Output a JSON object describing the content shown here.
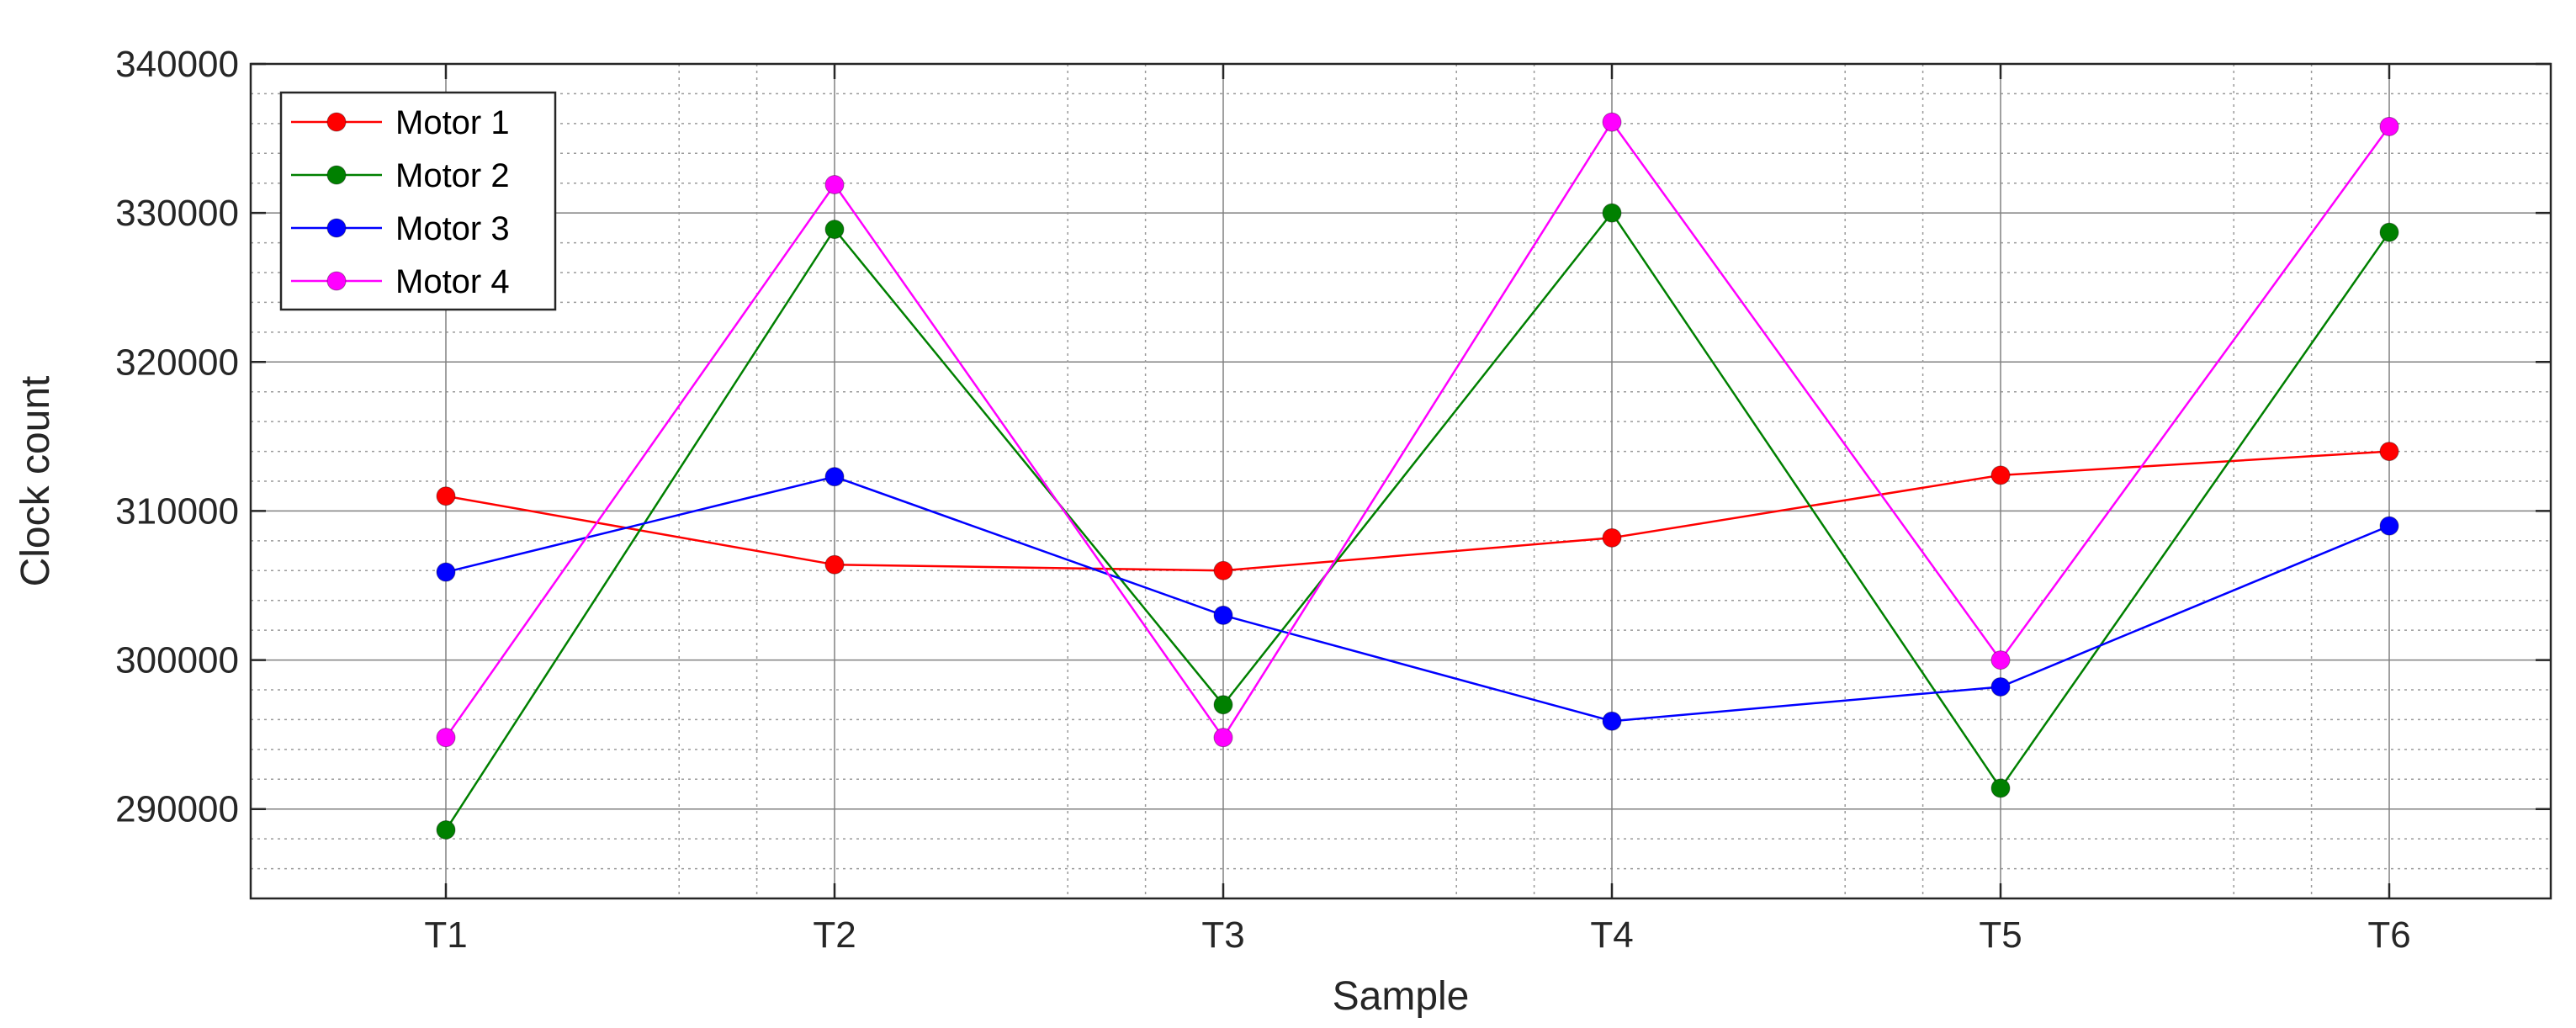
{
  "chart_data": {
    "type": "line",
    "title": "",
    "xlabel": "Sample",
    "ylabel": "Clock count",
    "categories": [
      "T1",
      "T2",
      "T3",
      "T4",
      "T5",
      "T6"
    ],
    "ylim": [
      284000,
      340000
    ],
    "yticks": [
      290000,
      300000,
      310000,
      320000,
      330000,
      340000
    ],
    "ytick_labels": [
      "290000",
      "300000",
      "310000",
      "320000",
      "330000",
      "340000"
    ],
    "grid": "on",
    "legend_position": "top-left",
    "series": [
      {
        "name": "Motor 1",
        "color": "#ff0000",
        "values": [
          311000,
          306400,
          306000,
          308200,
          312400,
          314000
        ]
      },
      {
        "name": "Motor 2",
        "color": "#008000",
        "values": [
          288600,
          328900,
          297000,
          330000,
          291400,
          328700
        ]
      },
      {
        "name": "Motor 3",
        "color": "#0000ff",
        "values": [
          305900,
          312300,
          303000,
          295900,
          298200,
          309000
        ]
      },
      {
        "name": "Motor 4",
        "color": "#ff00ff",
        "values": [
          294800,
          331900,
          294800,
          336100,
          300000,
          335800
        ]
      }
    ]
  }
}
